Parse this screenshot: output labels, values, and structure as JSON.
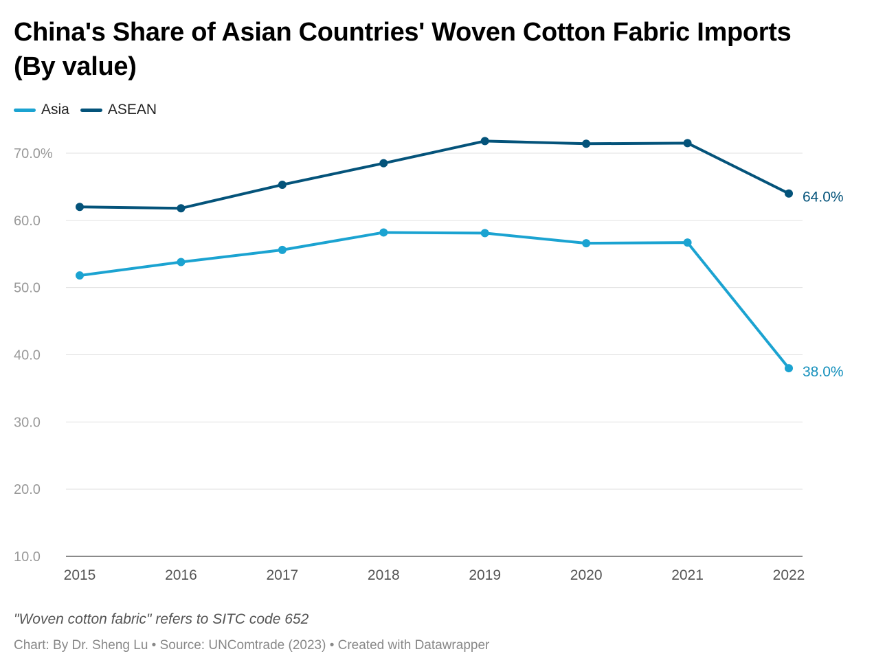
{
  "chart_data": {
    "type": "line",
    "title": "China's Share of Asian Countries' Woven Cotton Fabric Imports (By value)",
    "xlabel": "",
    "ylabel": "",
    "categories": [
      "2015",
      "2016",
      "2017",
      "2018",
      "2019",
      "2020",
      "2021",
      "2022"
    ],
    "ylim": [
      10,
      70
    ],
    "yticks": [
      10,
      20,
      30,
      40,
      50,
      60,
      70
    ],
    "ytick_labels": [
      "10.0",
      "20.0",
      "30.0",
      "40.0",
      "50.0",
      "60.0",
      "70.0%"
    ],
    "grid": true,
    "legend_placement": "top-left",
    "series": [
      {
        "name": "Asia",
        "color": "#1ba3d1",
        "label_color": "#1590bc",
        "values": [
          51.8,
          53.8,
          55.6,
          58.2,
          58.1,
          56.6,
          56.7,
          38.0
        ],
        "end_label": "38.0%"
      },
      {
        "name": "ASEAN",
        "color": "#04537a",
        "label_color": "#04537a",
        "values": [
          62.0,
          61.8,
          65.3,
          68.5,
          71.8,
          71.4,
          71.5,
          64.0
        ],
        "end_label": "64.0%"
      }
    ],
    "note": "\"Woven cotton fabric\" refers to SITC code 652",
    "credit": "Chart: By Dr. Sheng Lu • Source: UNComtrade (2023) • Created with Datawrapper"
  }
}
